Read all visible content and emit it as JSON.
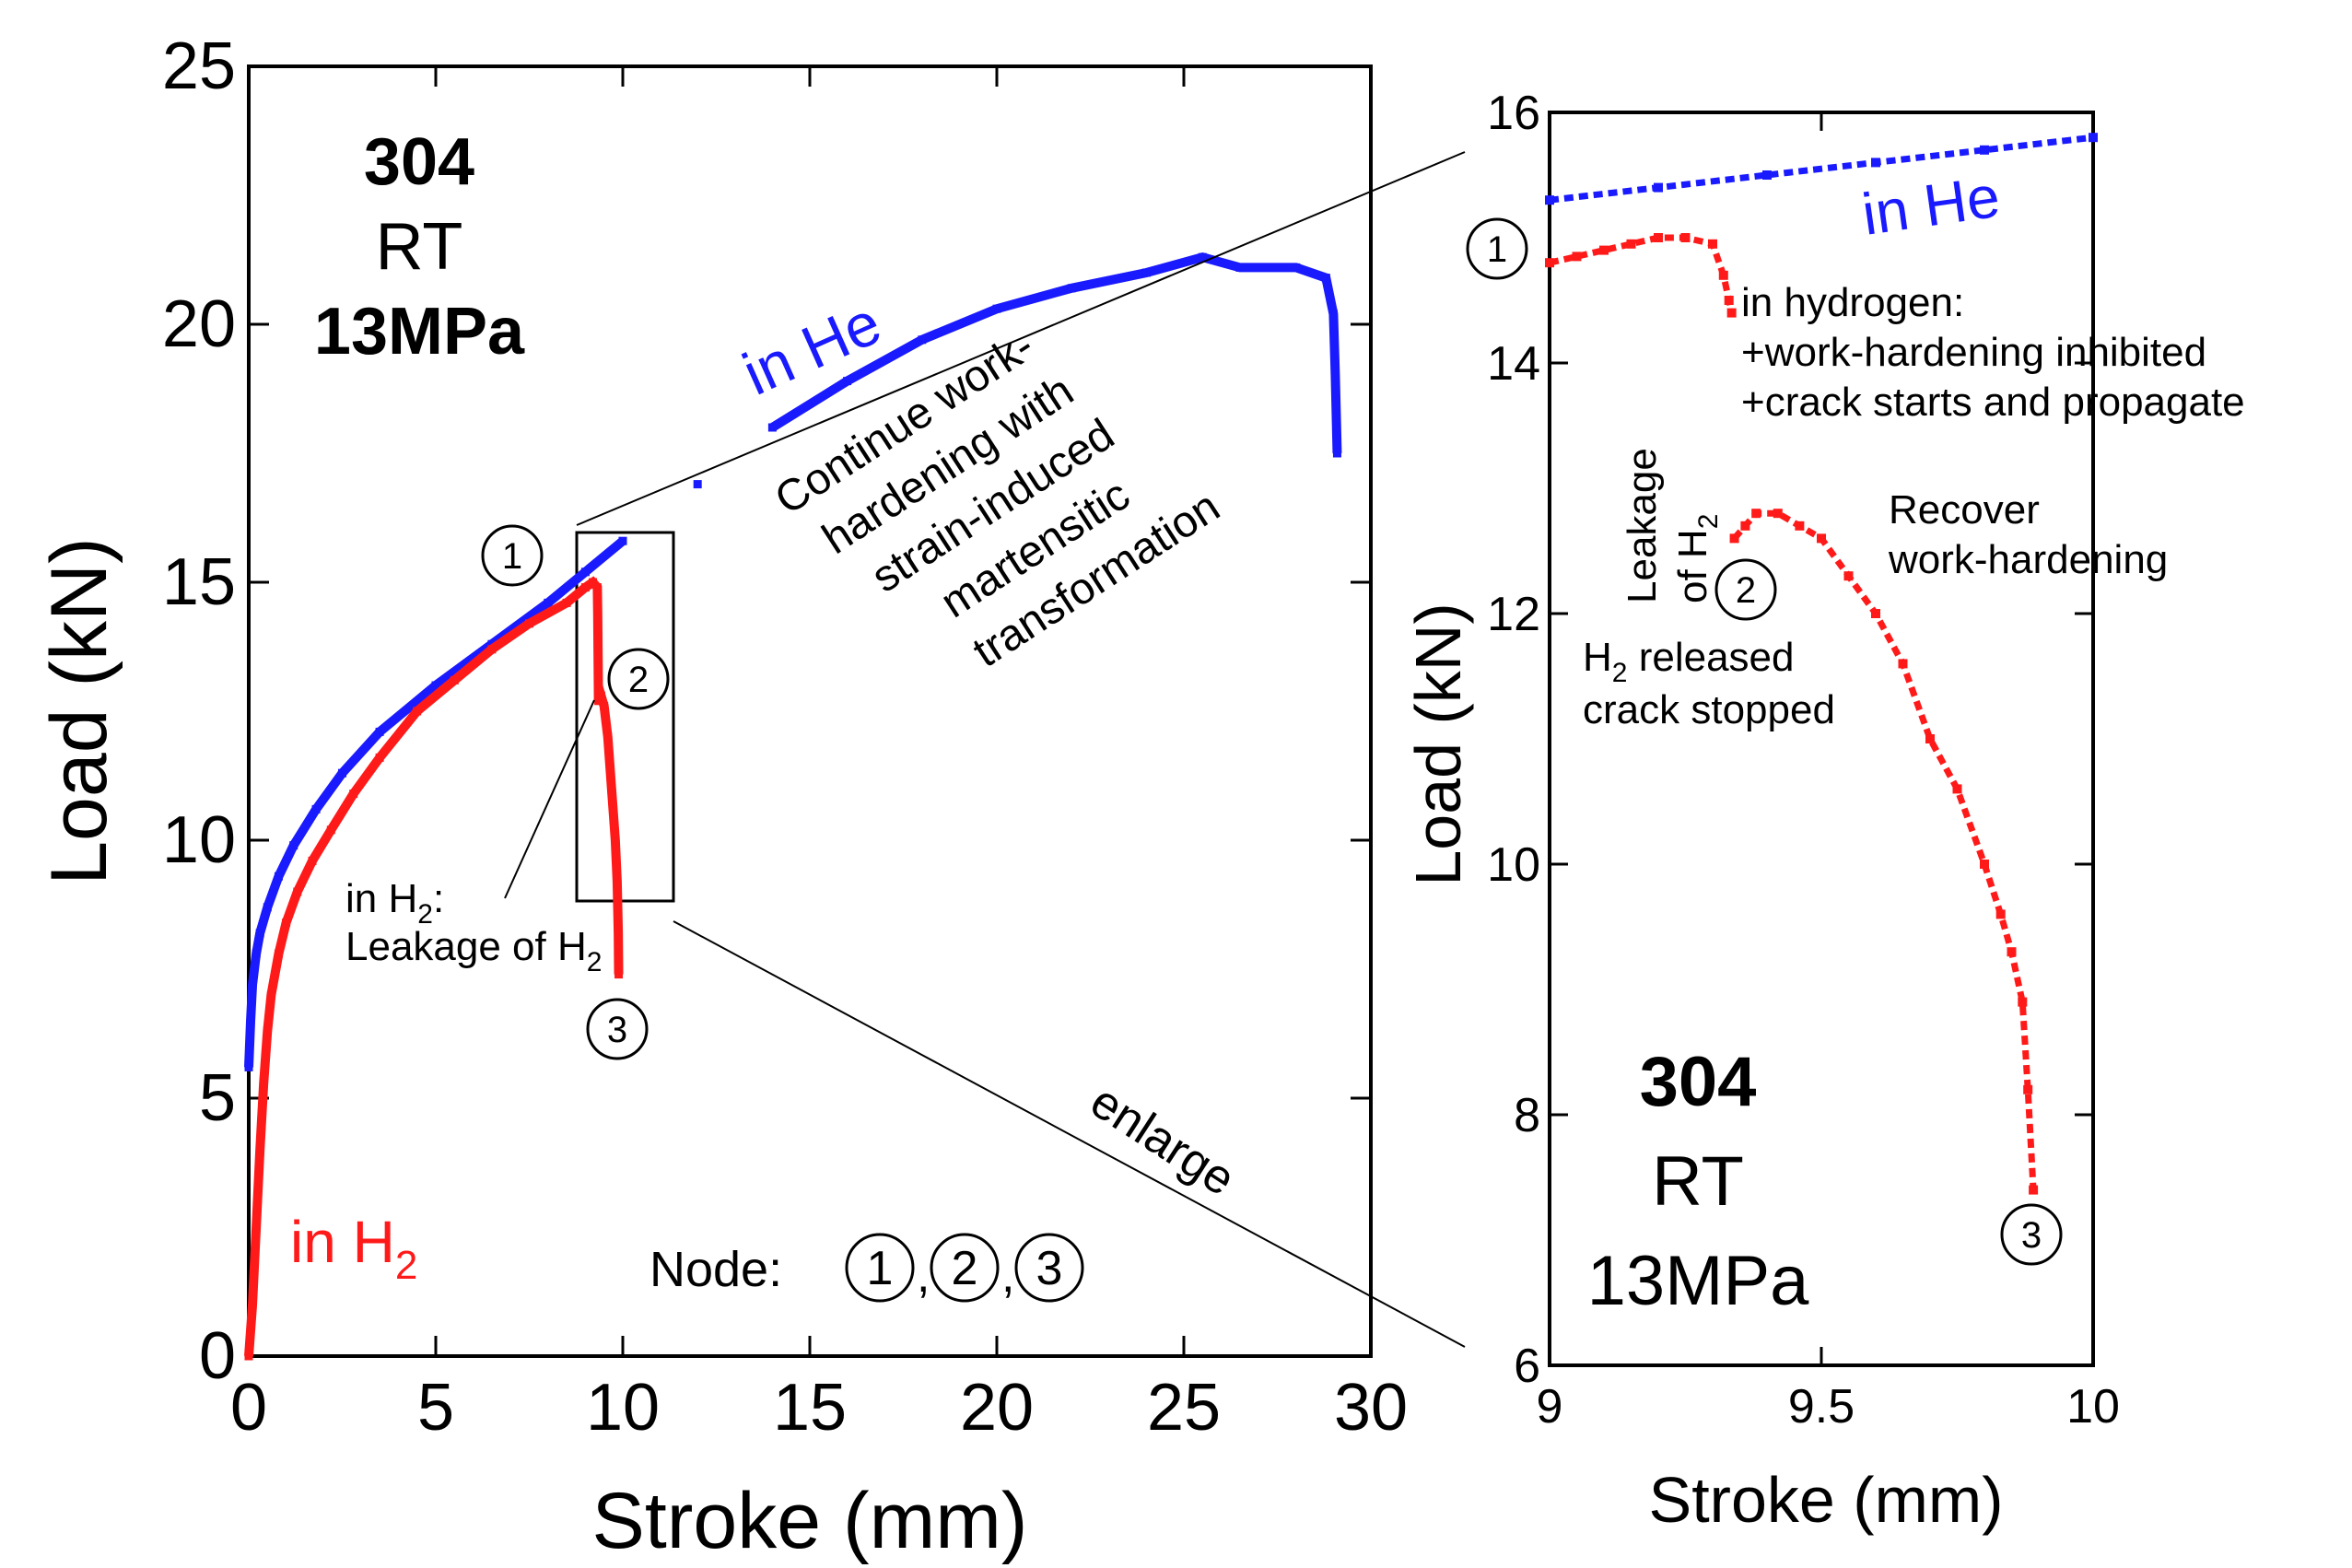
{
  "chart_data": [
    {
      "type": "line",
      "xlabel": "Stroke (mm)",
      "ylabel": "Load (kN)",
      "xlim": [
        0,
        30
      ],
      "ylim": [
        0,
        25
      ],
      "xticks": [
        "0",
        "5",
        "10",
        "15",
        "20",
        "25",
        "30"
      ],
      "yticks": [
        "0",
        "5",
        "10",
        "15",
        "20",
        "25"
      ],
      "specimen_label": [
        "304",
        "RT",
        "13MPa"
      ],
      "series": [
        {
          "name": "in He",
          "color": "#1a1aff",
          "x": [
            0,
            0.05,
            0.1,
            0.2,
            0.3,
            0.5,
            0.8,
            1.2,
            1.8,
            2.5,
            3.5,
            5,
            6.5,
            8,
            9,
            10,
            12,
            14,
            16,
            18,
            20,
            22,
            24,
            25.5,
            26.5,
            28,
            28.8,
            29,
            29.05,
            29.1
          ],
          "y": [
            5.6,
            6.5,
            7.2,
            7.8,
            8.2,
            8.7,
            9.3,
            9.9,
            10.6,
            11.3,
            12.1,
            13.0,
            13.8,
            14.6,
            15.2,
            15.8,
            16.9,
            18.0,
            18.9,
            19.7,
            20.3,
            20.7,
            21.0,
            21.3,
            21.1,
            21.1,
            20.9,
            20.2,
            19.0,
            17.5
          ]
        },
        {
          "name": "in H2",
          "color": "#ff1a1a",
          "x": [
            0,
            0.1,
            0.2,
            0.3,
            0.4,
            0.5,
            0.6,
            0.8,
            1.0,
            1.3,
            1.7,
            2.2,
            2.8,
            3.5,
            4.5,
            5.5,
            6.5,
            7.5,
            8.5,
            9.0,
            9.2,
            9.32,
            9.33,
            9.35,
            9.42,
            9.5,
            9.6,
            9.7,
            9.8,
            9.85,
            9.88,
            9.89
          ],
          "y": [
            0,
            1.0,
            2.5,
            4.0,
            5.3,
            6.3,
            7.0,
            7.8,
            8.4,
            9.0,
            9.6,
            10.2,
            10.9,
            11.6,
            12.5,
            13.1,
            13.7,
            14.2,
            14.6,
            14.9,
            15.0,
            14.9,
            14.4,
            12.7,
            12.8,
            12.6,
            12.0,
            11.0,
            10.0,
            9.2,
            8.2,
            7.4
          ]
        }
      ],
      "annotations": {
        "series_he": "in He",
        "series_h2": "in H",
        "series_h2_sub": "2",
        "work_hardening": [
          "Continue work-",
          "hardening with",
          "strain-induced",
          "martensitic",
          "transformation"
        ],
        "leak_line1": "in H",
        "leak_sub": "2",
        "leak_colon": ":",
        "leak_line2": "Leakage of  H",
        "enlarge": "enlarge",
        "node_label": "Node:",
        "node_1": "①",
        "node_2": "②",
        "node_3": "③",
        "comma": ","
      }
    },
    {
      "type": "line",
      "xlabel": "Stroke (mm)",
      "ylabel": "Load (kN)",
      "xlim": [
        9,
        10
      ],
      "ylim": [
        6,
        16
      ],
      "xticks": [
        "9",
        "9.5",
        "10"
      ],
      "yticks": [
        "6",
        "8",
        "10",
        "12",
        "14",
        "16"
      ],
      "specimen_label": [
        "304",
        "RT",
        "13MPa"
      ],
      "series": [
        {
          "name": "in He",
          "color": "#1a1aff",
          "x": [
            9.0,
            9.2,
            9.4,
            9.6,
            9.8,
            10.0
          ],
          "y": [
            15.3,
            15.4,
            15.5,
            15.6,
            15.7,
            15.8
          ]
        },
        {
          "name": "in H2",
          "color": "#ff1a1a",
          "x": [
            9.0,
            9.05,
            9.1,
            9.15,
            9.2,
            9.25,
            9.3,
            9.32,
            9.33,
            9.335,
            9.34,
            9.36,
            9.38,
            9.42,
            9.46,
            9.5,
            9.55,
            9.6,
            9.65,
            9.7,
            9.75,
            9.8,
            9.83,
            9.85,
            9.87,
            9.88,
            9.89
          ],
          "y": [
            14.8,
            14.85,
            14.9,
            14.95,
            15.0,
            15.0,
            14.95,
            14.7,
            14.5,
            14.4,
            12.6,
            12.7,
            12.8,
            12.8,
            12.7,
            12.6,
            12.3,
            12.0,
            11.6,
            11.0,
            10.6,
            10.0,
            9.6,
            9.3,
            8.9,
            8.2,
            7.4
          ]
        }
      ],
      "annotations": {
        "series_he": "in He",
        "hydrogen_effects": [
          "in hydrogen:",
          "+work-hardening inhibited",
          "+crack starts and propagate"
        ],
        "leakage_v1": "Leakage",
        "leakage_v2": "of H",
        "leakage_v2_sub": "2",
        "released_h": "H",
        "released_sub": "2",
        "released_rest": " released",
        "crack_stopped": "crack stopped",
        "recover": [
          "Recover",
          "work-hardening"
        ],
        "node_1": "①",
        "node_2": "②",
        "node_3": "③"
      }
    }
  ]
}
